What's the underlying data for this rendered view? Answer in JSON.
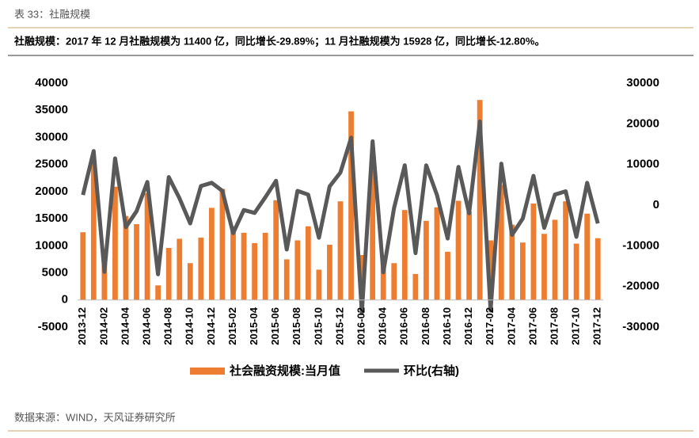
{
  "chart_data": {
    "type": "bar_line",
    "title": "表 33：社融规模",
    "subtitle": "社融规模：2017 年 12 月社融规模为 11400 亿，同比增长-29.89%；11 月社融规模为 15928 亿，同比增长-12.80%。",
    "source": "数据来源：WIND，天风证券研究所",
    "categories": [
      "2013-12",
      null,
      "2014-02",
      null,
      "2014-04",
      null,
      "2014-06",
      null,
      "2014-08",
      null,
      "2014-10",
      null,
      "2014-12",
      null,
      "2015-02",
      null,
      "2015-04",
      null,
      "2015-06",
      null,
      "2015-08",
      null,
      "2015-10",
      null,
      "2015-12",
      null,
      "2016-02",
      null,
      "2016-04",
      null,
      "2016-06",
      null,
      "2016-08",
      null,
      "2016-10",
      null,
      "2016-12",
      null,
      "2017-02",
      null,
      "2017-04",
      null,
      "2017-06",
      null,
      "2017-08",
      null,
      "2017-10",
      null,
      "2017-12"
    ],
    "series": [
      {
        "name": "社会融资规模:当月值",
        "color": "#ed7d31",
        "kind": "bar",
        "axis": "y",
        "values": [
          12500,
          25800,
          9400,
          20900,
          15500,
          14000,
          19700,
          2700,
          9600,
          11300,
          6800,
          11500,
          17000,
          20500,
          13600,
          12400,
          10500,
          12400,
          18400,
          7500,
          11000,
          13600,
          5600,
          10200,
          18200,
          34800,
          8300,
          24000,
          7500,
          6800,
          16600,
          4800,
          14600,
          17100,
          8900,
          18300,
          16300,
          36900,
          11000,
          21200,
          13900,
          10600,
          17800,
          12200,
          14800,
          18200,
          10400,
          15928,
          11400
        ]
      },
      {
        "name": "环比(右轴)",
        "color": "#595959",
        "kind": "line",
        "axis": "y2",
        "values": [
          2500,
          13300,
          -16400,
          11500,
          -5400,
          -1500,
          5700,
          -17000,
          6900,
          1700,
          -4500,
          4700,
          5500,
          3500,
          -6900,
          -1200,
          -1900,
          1900,
          6000,
          -10900,
          3500,
          2600,
          -8000,
          4600,
          8000,
          16600,
          -26500,
          15700,
          -16500,
          -700,
          9800,
          -11800,
          9800,
          2500,
          -8200,
          9400,
          -2000,
          20600,
          -25900,
          10200,
          -7300,
          -3300,
          7200,
          -5600,
          2600,
          3400,
          -7800,
          5500,
          -4500
        ]
      }
    ],
    "ylim": [
      -5000,
      40000
    ],
    "yticks": [
      -5000,
      0,
      5000,
      10000,
      15000,
      20000,
      25000,
      30000,
      35000,
      40000
    ],
    "y2lim": [
      -30000,
      30000
    ],
    "y2ticks": [
      -30000,
      -20000,
      -10000,
      0,
      10000,
      20000,
      30000
    ],
    "grid": false
  }
}
